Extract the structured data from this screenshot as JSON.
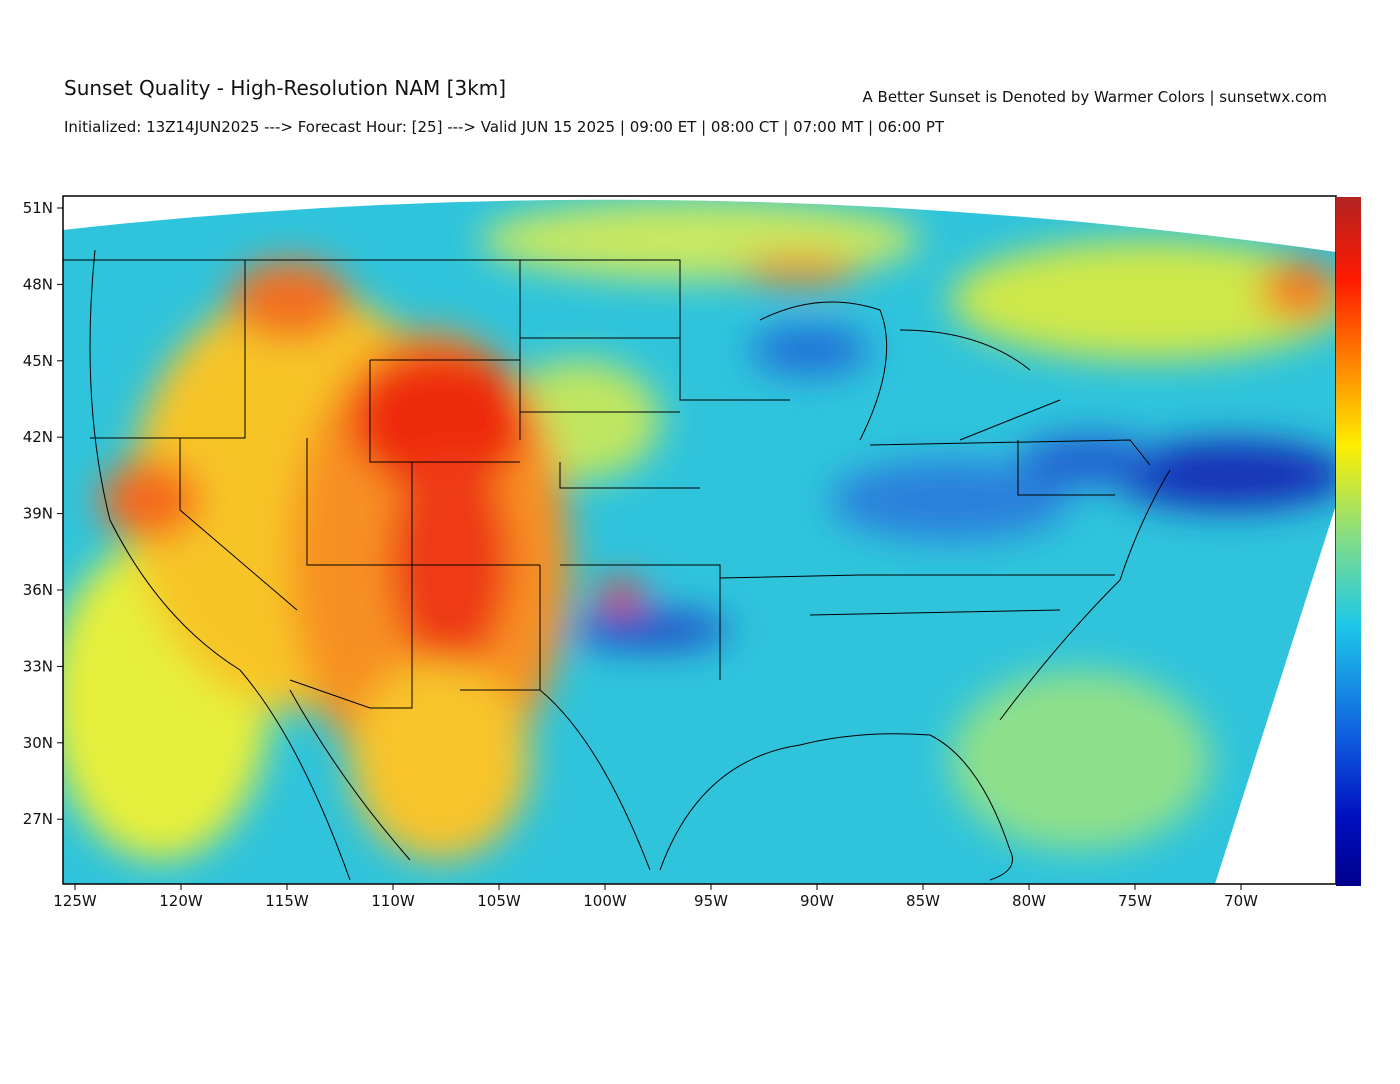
{
  "header": {
    "title": "Sunset Quality - High-Resolution NAM [3km]",
    "note": "A Better Sunset is Denoted by Warmer Colors | sunsetwx.com",
    "subtitle": "Initialized: 13Z14JUN2025 ---> Forecast Hour: [25] ---> Valid JUN 15 2025 | 09:00 ET | 08:00 CT | 07:00 MT | 06:00 PT"
  },
  "map": {
    "lat_ticks": [
      "51N",
      "48N",
      "45N",
      "42N",
      "39N",
      "36N",
      "33N",
      "30N",
      "27N"
    ],
    "lon_ticks": [
      "125W",
      "120W",
      "115W",
      "110W",
      "105W",
      "100W",
      "95W",
      "90W",
      "85W",
      "80W",
      "75W",
      "70W"
    ]
  }
}
